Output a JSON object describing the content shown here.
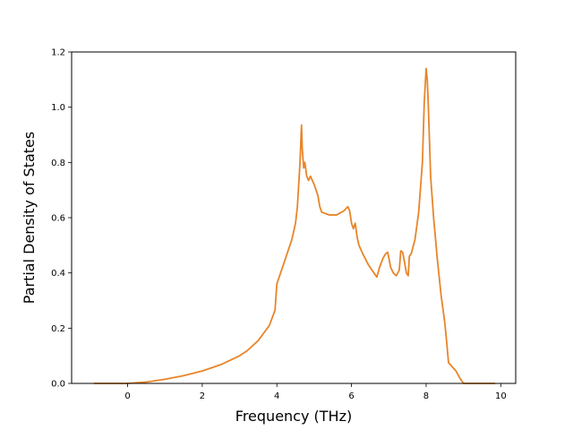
{
  "chart_data": {
    "type": "line",
    "xlabel": "Frequency (THz)",
    "ylabel": "Partial Density of States",
    "xlim": [
      -1.5,
      10.4
    ],
    "ylim": [
      0.0,
      1.2
    ],
    "xticks": [
      "0",
      "2",
      "4",
      "6",
      "8",
      "10"
    ],
    "yticks": [
      "0.0",
      "0.2",
      "0.4",
      "0.6",
      "0.8",
      "1.0",
      "1.2"
    ],
    "grid": false,
    "legend": "none",
    "series": [
      {
        "color": "#e8852a",
        "x": [
          -0.9,
          0.0,
          0.5,
          1.0,
          1.5,
          2.0,
          2.5,
          3.0,
          3.2,
          3.5,
          3.8,
          3.95,
          4.0,
          4.2,
          4.4,
          4.5,
          4.55,
          4.62,
          4.66,
          4.68,
          4.72,
          4.75,
          4.8,
          4.85,
          4.9,
          5.0,
          5.1,
          5.15,
          5.2,
          5.3,
          5.4,
          5.6,
          5.8,
          5.9,
          5.95,
          6.0,
          6.05,
          6.1,
          6.15,
          6.2,
          6.3,
          6.45,
          6.6,
          6.68,
          6.75,
          6.85,
          6.92,
          6.97,
          7.02,
          7.05,
          7.12,
          7.2,
          7.28,
          7.32,
          7.37,
          7.42,
          7.47,
          7.52,
          7.55,
          7.6,
          7.7,
          7.8,
          7.9,
          7.95,
          8.0,
          8.03,
          8.06,
          8.12,
          8.2,
          8.3,
          8.4,
          8.5,
          8.55,
          8.6,
          8.7,
          8.8,
          8.9,
          9.0,
          9.3,
          9.85
        ],
        "values": [
          0.0,
          0.0,
          0.005,
          0.015,
          0.028,
          0.045,
          0.068,
          0.1,
          0.118,
          0.155,
          0.21,
          0.265,
          0.36,
          0.44,
          0.52,
          0.58,
          0.64,
          0.8,
          0.935,
          0.85,
          0.78,
          0.8,
          0.75,
          0.735,
          0.75,
          0.72,
          0.68,
          0.64,
          0.62,
          0.615,
          0.61,
          0.61,
          0.625,
          0.64,
          0.625,
          0.58,
          0.56,
          0.58,
          0.53,
          0.5,
          0.47,
          0.43,
          0.4,
          0.385,
          0.42,
          0.455,
          0.47,
          0.475,
          0.44,
          0.42,
          0.4,
          0.39,
          0.41,
          0.48,
          0.475,
          0.44,
          0.4,
          0.39,
          0.46,
          0.47,
          0.52,
          0.62,
          0.8,
          1.02,
          1.14,
          1.1,
          1.0,
          0.75,
          0.6,
          0.45,
          0.32,
          0.22,
          0.15,
          0.075,
          0.06,
          0.045,
          0.02,
          0.0,
          0.0,
          0.0
        ]
      }
    ]
  }
}
